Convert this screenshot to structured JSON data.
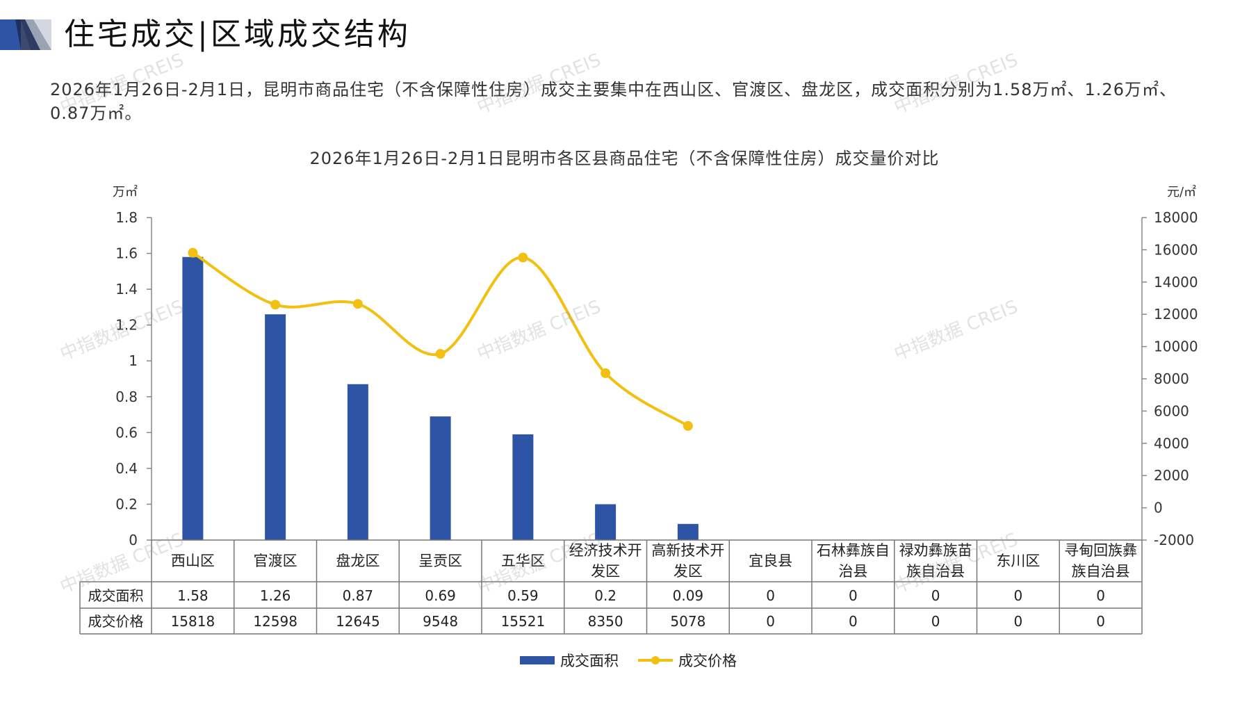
{
  "page": {
    "title": "住宅成交|区域成交结构",
    "summary": "2026年1月26日-2月1日，昆明市商品住宅（不含保障性住房）成交主要集中在西山区、官渡区、盘龙区，成交面积分别为1.58万㎡、1.26万㎡、0.87万㎡。",
    "watermark": "中指数据 CREIS"
  },
  "colors": {
    "bar": "#2E55A5",
    "line": "#F2C010",
    "accent": "#2E55A5"
  },
  "chart_data": {
    "type": "bar",
    "title": "2026年1月26日-2月1日昆明市各区县商品住宅（不含保障性住房）成交量价对比",
    "y_left_unit": "万㎡",
    "y_right_unit": "元/㎡",
    "ylim_left": [
      0,
      1.8
    ],
    "ylim_right": [
      -2000,
      18000
    ],
    "y_left_ticks": [
      "0",
      "0.2",
      "0.4",
      "0.6",
      "0.8",
      "1",
      "1.2",
      "1.4",
      "1.6",
      "1.8"
    ],
    "y_right_ticks": [
      "-2000",
      "0",
      "2000",
      "4000",
      "6000",
      "8000",
      "10000",
      "12000",
      "14000",
      "16000",
      "18000"
    ],
    "categories": [
      [
        "西山区"
      ],
      [
        "官渡区"
      ],
      [
        "盘龙区"
      ],
      [
        "呈贡区"
      ],
      [
        "五华区"
      ],
      [
        "经济技术开",
        "发区"
      ],
      [
        "高新技术开",
        "发区"
      ],
      [
        "宜良县"
      ],
      [
        "石林彝族自",
        "治县"
      ],
      [
        "禄劝彝族苗",
        "族自治县"
      ],
      [
        "东川区"
      ],
      [
        "寻甸回族彝",
        "族自治县"
      ]
    ],
    "series": [
      {
        "name": "成交面积",
        "type": "bar",
        "axis": "left",
        "values": [
          1.58,
          1.26,
          0.87,
          0.69,
          0.59,
          0.2,
          0.09,
          0,
          0,
          0,
          0,
          0
        ],
        "labels": [
          "1.58",
          "1.26",
          "0.87",
          "0.69",
          "0.59",
          "0.2",
          "0.09",
          "0",
          "0",
          "0",
          "0",
          "0"
        ]
      },
      {
        "name": "成交价格",
        "type": "line",
        "axis": "right",
        "values": [
          15818,
          12598,
          12645,
          9548,
          15521,
          8350,
          5078,
          0,
          0,
          0,
          0,
          0
        ],
        "labels": [
          "15818",
          "12598",
          "12645",
          "9548",
          "15521",
          "8350",
          "5078",
          "0",
          "0",
          "0",
          "0",
          "0"
        ],
        "line_points": 7
      }
    ],
    "legend": "bottom",
    "grid": false
  }
}
